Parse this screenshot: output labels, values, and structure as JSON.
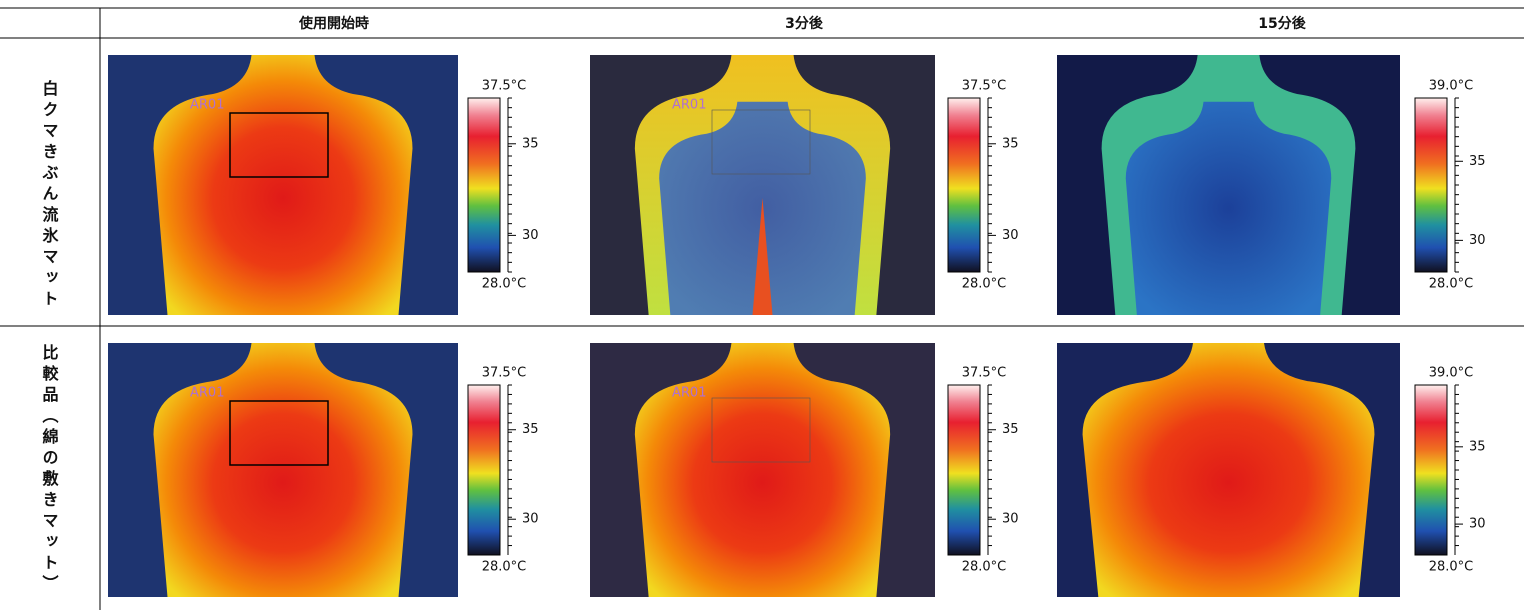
{
  "header": {
    "columns": [
      "使用開始時",
      "3分後",
      "15分後"
    ]
  },
  "rows": [
    {
      "label": "白クマきぶん流氷マット",
      "cells": [
        {
          "roi": "AR01",
          "scale": {
            "top": "37.5°C",
            "ticks": [
              "35",
              "30"
            ],
            "bottom": "28.0°C"
          }
        },
        {
          "roi": "AR01",
          "scale": {
            "top": "37.5°C",
            "ticks": [
              "35",
              "30"
            ],
            "bottom": "28.0°C"
          }
        },
        {
          "scale": {
            "top": "39.0°C",
            "ticks": [
              "35",
              "30"
            ],
            "bottom": "28.0°C"
          }
        }
      ]
    },
    {
      "label": "比較品（綿の敷きマット）",
      "cells": [
        {
          "roi": "AR01",
          "scale": {
            "top": "37.5°C",
            "ticks": [
              "35",
              "30"
            ],
            "bottom": "28.0°C"
          }
        },
        {
          "roi": "AR01",
          "scale": {
            "top": "37.5°C",
            "ticks": [
              "35",
              "30"
            ],
            "bottom": "28.0°C"
          }
        },
        {
          "scale": {
            "top": "39.0°C",
            "ticks": [
              "35",
              "30"
            ],
            "bottom": "28.0°C"
          }
        }
      ]
    }
  ]
}
